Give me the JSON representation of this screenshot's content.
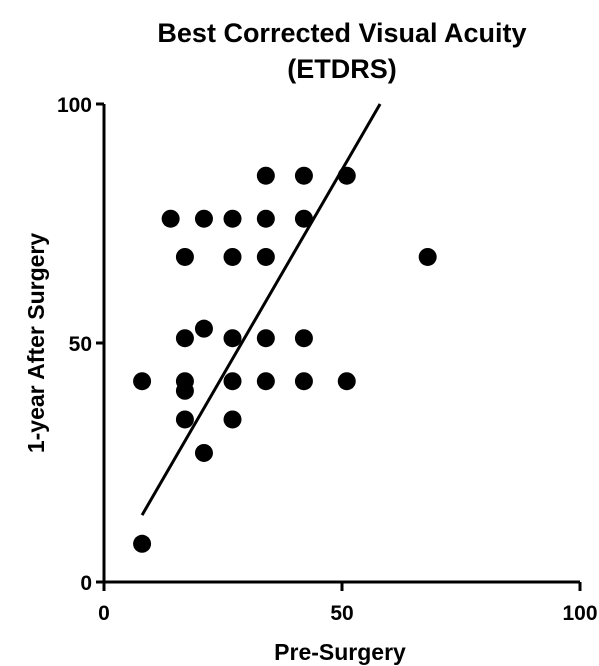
{
  "chart_data": {
    "type": "scatter",
    "title": "Best Corrected Visual Acuity",
    "subtitle": "(ETDRS)",
    "xlabel": "Pre-Surgery",
    "ylabel": "1-year After Surgery",
    "xlim": [
      0,
      100
    ],
    "ylim": [
      0,
      100
    ],
    "xticks": [
      0,
      50,
      100
    ],
    "yticks": [
      0,
      50,
      100
    ],
    "x_tick_labels": [
      "0",
      "50",
      "100"
    ],
    "y_tick_labels": [
      "0",
      "50",
      "100"
    ],
    "grid": false,
    "marker_color": "#000000",
    "points": [
      {
        "x": 8,
        "y": 42
      },
      {
        "x": 8,
        "y": 8
      },
      {
        "x": 14,
        "y": 76
      },
      {
        "x": 17,
        "y": 68
      },
      {
        "x": 17,
        "y": 51
      },
      {
        "x": 17,
        "y": 42
      },
      {
        "x": 17,
        "y": 40
      },
      {
        "x": 17,
        "y": 34
      },
      {
        "x": 21,
        "y": 76
      },
      {
        "x": 21,
        "y": 53
      },
      {
        "x": 21,
        "y": 27
      },
      {
        "x": 27,
        "y": 76
      },
      {
        "x": 27,
        "y": 68
      },
      {
        "x": 27,
        "y": 51
      },
      {
        "x": 27,
        "y": 42
      },
      {
        "x": 27,
        "y": 34
      },
      {
        "x": 34,
        "y": 85
      },
      {
        "x": 34,
        "y": 76
      },
      {
        "x": 34,
        "y": 68
      },
      {
        "x": 34,
        "y": 51
      },
      {
        "x": 34,
        "y": 42
      },
      {
        "x": 42,
        "y": 85
      },
      {
        "x": 42,
        "y": 76
      },
      {
        "x": 42,
        "y": 51
      },
      {
        "x": 42,
        "y": 42
      },
      {
        "x": 51,
        "y": 85
      },
      {
        "x": 51,
        "y": 42
      },
      {
        "x": 68,
        "y": 68
      }
    ],
    "fit_line": {
      "x1": 8,
      "y1": 14,
      "x2": 58,
      "y2": 100
    }
  }
}
